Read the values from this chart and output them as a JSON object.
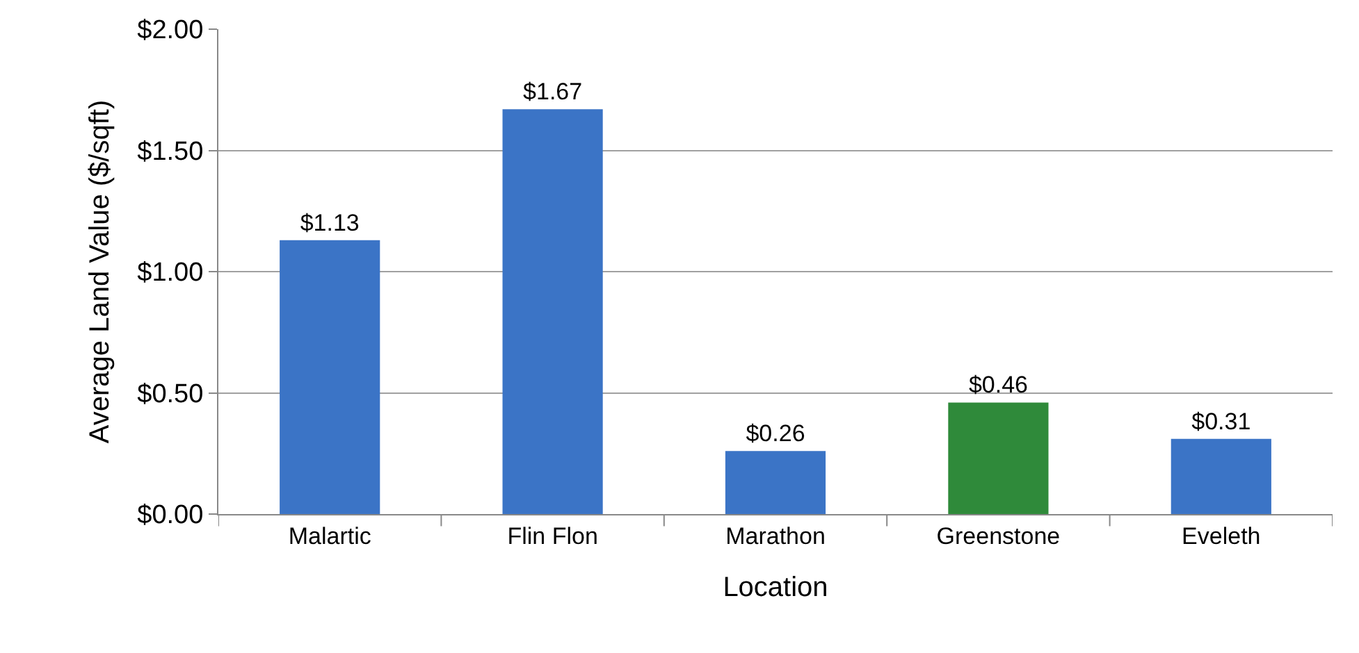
{
  "chart_data": {
    "type": "bar",
    "xlabel": "Location",
    "ylabel": "Average Land Value ($/sqft)",
    "categories": [
      "Malartic",
      "Flin Flon",
      "Marathon",
      "Greenstone",
      "Eveleth"
    ],
    "values": [
      1.13,
      1.67,
      0.26,
      0.46,
      0.31
    ],
    "colors": [
      "#3b74c6",
      "#3b74c6",
      "#3b74c6",
      "#2f8a3a",
      "#3b74c6"
    ],
    "value_labels": [
      "$1.13",
      "$1.67",
      "$0.26",
      "$0.46",
      "$0.31"
    ],
    "ylim": [
      0,
      2
    ],
    "yticks": [
      {
        "value": 0,
        "label": "$0.00"
      },
      {
        "value": 0.5,
        "label": "$0.50"
      },
      {
        "value": 1,
        "label": "$1.00"
      },
      {
        "value": 1.5,
        "label": "$1.50"
      },
      {
        "value": 2,
        "label": "$2.00"
      }
    ],
    "grid": "y",
    "legend": false
  }
}
